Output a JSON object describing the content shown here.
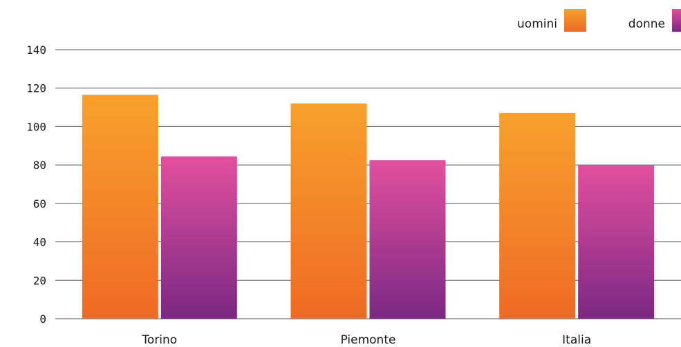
{
  "chart_data": {
    "type": "bar",
    "title": "",
    "xlabel": "",
    "ylabel": "",
    "categories": [
      "Torino",
      "Piemonte",
      "Italia"
    ],
    "series": [
      {
        "name": "uomini",
        "values": [
          116.5,
          112,
          107
        ]
      },
      {
        "name": "donne",
        "values": [
          84.5,
          82.5,
          80
        ]
      }
    ],
    "ylim": [
      0,
      140
    ],
    "yticks": [
      "0",
      "20",
      "40",
      "60",
      "80",
      "100",
      "120",
      "140"
    ],
    "grid": true,
    "legend_position": "top-right",
    "colors": {
      "uomini_top": "#f7a12c",
      "uomini_bottom": "#ef6a24",
      "donne_top": "#e2509e",
      "donne_bottom": "#7a2882"
    }
  }
}
